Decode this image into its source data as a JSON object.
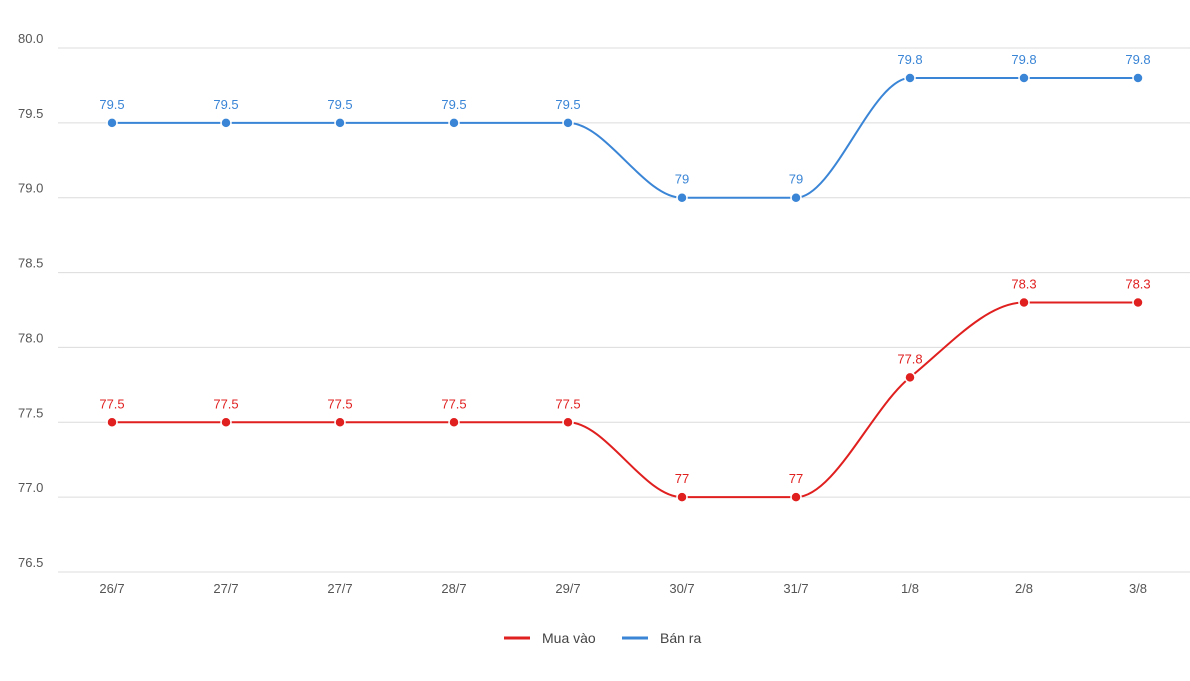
{
  "chart_data": {
    "type": "line",
    "categories": [
      "26/7",
      "27/7",
      "27/7",
      "28/7",
      "29/7",
      "30/7",
      "31/7",
      "1/8",
      "2/8",
      "3/8"
    ],
    "series": [
      {
        "name": "Mua vào",
        "color": "#e01f1f",
        "values": [
          77.5,
          77.5,
          77.5,
          77.5,
          77.5,
          77,
          77,
          77.8,
          78.3,
          78.3
        ]
      },
      {
        "name": "Bán ra",
        "color": "#3a85d6",
        "values": [
          79.5,
          79.5,
          79.5,
          79.5,
          79.5,
          79,
          79,
          79.8,
          79.8,
          79.8
        ]
      }
    ],
    "data_labels": [
      [
        "77.5",
        "77.5",
        "77.5",
        "77.5",
        "77.5",
        "77",
        "77",
        "77.8",
        "78.3",
        "78.3"
      ],
      [
        "79.5",
        "79.5",
        "79.5",
        "79.5",
        "79.5",
        "79",
        "79",
        "79.8",
        "79.8",
        "79.8"
      ]
    ],
    "yticks": [
      "76.5",
      "77.0",
      "77.5",
      "78.0",
      "78.5",
      "79.0",
      "79.5",
      "80.0"
    ],
    "ylim": [
      76.5,
      80.0
    ],
    "grid": true,
    "legend": "bottom-center",
    "title": "",
    "xlabel": "",
    "ylabel": ""
  }
}
